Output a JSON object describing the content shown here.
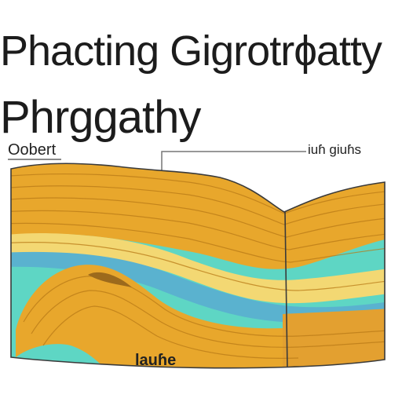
{
  "heading": {
    "line1": "Phacting Gigrotrɸatty",
    "line2": "Phrggathy"
  },
  "labels": {
    "top_left": "Oobert",
    "top_right": "iuɦ giuɦs",
    "bottom": "lauɦe"
  },
  "colors": {
    "gold": "#e8a72c",
    "light_yellow": "#f3d873",
    "cyan": "#5ed6c4",
    "blue": "#5ab2cf",
    "outline": "#3a3a3a",
    "callout_line": "#777777"
  }
}
